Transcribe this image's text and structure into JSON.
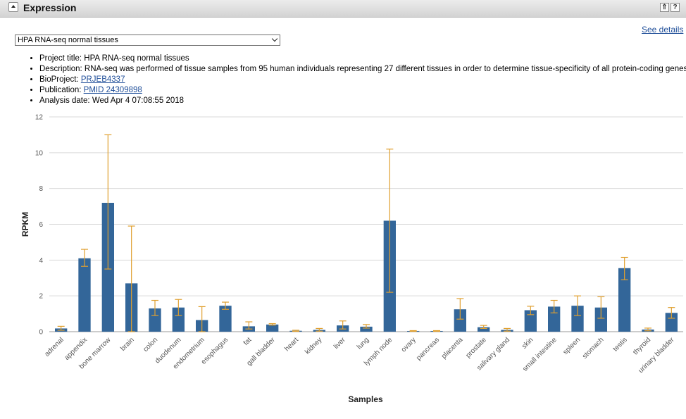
{
  "header": {
    "title": "Expression",
    "top_button": "⇑",
    "help_button": "?"
  },
  "see_details": "See details",
  "dataset_select": {
    "value": "HPA RNA-seq normal tissues"
  },
  "meta": {
    "project_label": "Project title:",
    "project_value": "HPA RNA-seq normal tissues",
    "description_label": "Description:",
    "description_value": "RNA-seq was performed of tissue samples from 95 human individuals representing 27 different tissues in order to determine tissue-specificity of all protein-coding genes",
    "bioproject_label": "BioProject:",
    "bioproject_value": "PRJEB4337",
    "publication_label": "Publication:",
    "publication_value": "PMID 24309898",
    "analysis_label": "Analysis date:",
    "analysis_value": "Wed Apr 4 07:08:55 2018"
  },
  "chart_data": {
    "type": "bar",
    "xlabel": "Samples",
    "ylabel": "RPKM",
    "ylim": [
      0,
      12
    ],
    "yticks": [
      0,
      2,
      4,
      6,
      8,
      10,
      12
    ],
    "grid": true,
    "bar_color": "#336699",
    "error_color": "#e0a030",
    "categories": [
      "adrenal",
      "appendix",
      "bone marrow",
      "brain",
      "colon",
      "duodenum",
      "endometrium",
      "esophagus",
      "fat",
      "gall bladder",
      "heart",
      "kidney",
      "liver",
      "lung",
      "lymph node",
      "ovary",
      "pancreas",
      "placenta",
      "prostate",
      "salivary gland",
      "skin",
      "small intestine",
      "spleen",
      "stomach",
      "testis",
      "thyroid",
      "urinary bladder"
    ],
    "values": [
      0.18,
      4.1,
      7.2,
      2.7,
      1.3,
      1.35,
      0.65,
      1.45,
      0.3,
      0.4,
      0.05,
      0.1,
      0.35,
      0.28,
      6.2,
      0.04,
      0.04,
      1.25,
      0.25,
      0.1,
      1.2,
      1.4,
      1.45,
      1.35,
      3.55,
      0.12,
      1.05
    ],
    "error_low": [
      0.08,
      3.65,
      3.5,
      0.0,
      0.9,
      0.9,
      0.0,
      1.25,
      0.15,
      0.37,
      0.02,
      0.03,
      0.15,
      0.2,
      2.2,
      0.02,
      0.02,
      0.7,
      0.18,
      0.03,
      0.95,
      1.05,
      0.9,
      0.75,
      2.9,
      0.05,
      0.75
    ],
    "error_high": [
      0.3,
      4.6,
      11.0,
      5.9,
      1.75,
      1.8,
      1.4,
      1.65,
      0.55,
      0.45,
      0.08,
      0.18,
      0.6,
      0.4,
      10.2,
      0.06,
      0.06,
      1.85,
      0.35,
      0.18,
      1.42,
      1.75,
      2.0,
      1.95,
      4.15,
      0.2,
      1.35
    ]
  }
}
